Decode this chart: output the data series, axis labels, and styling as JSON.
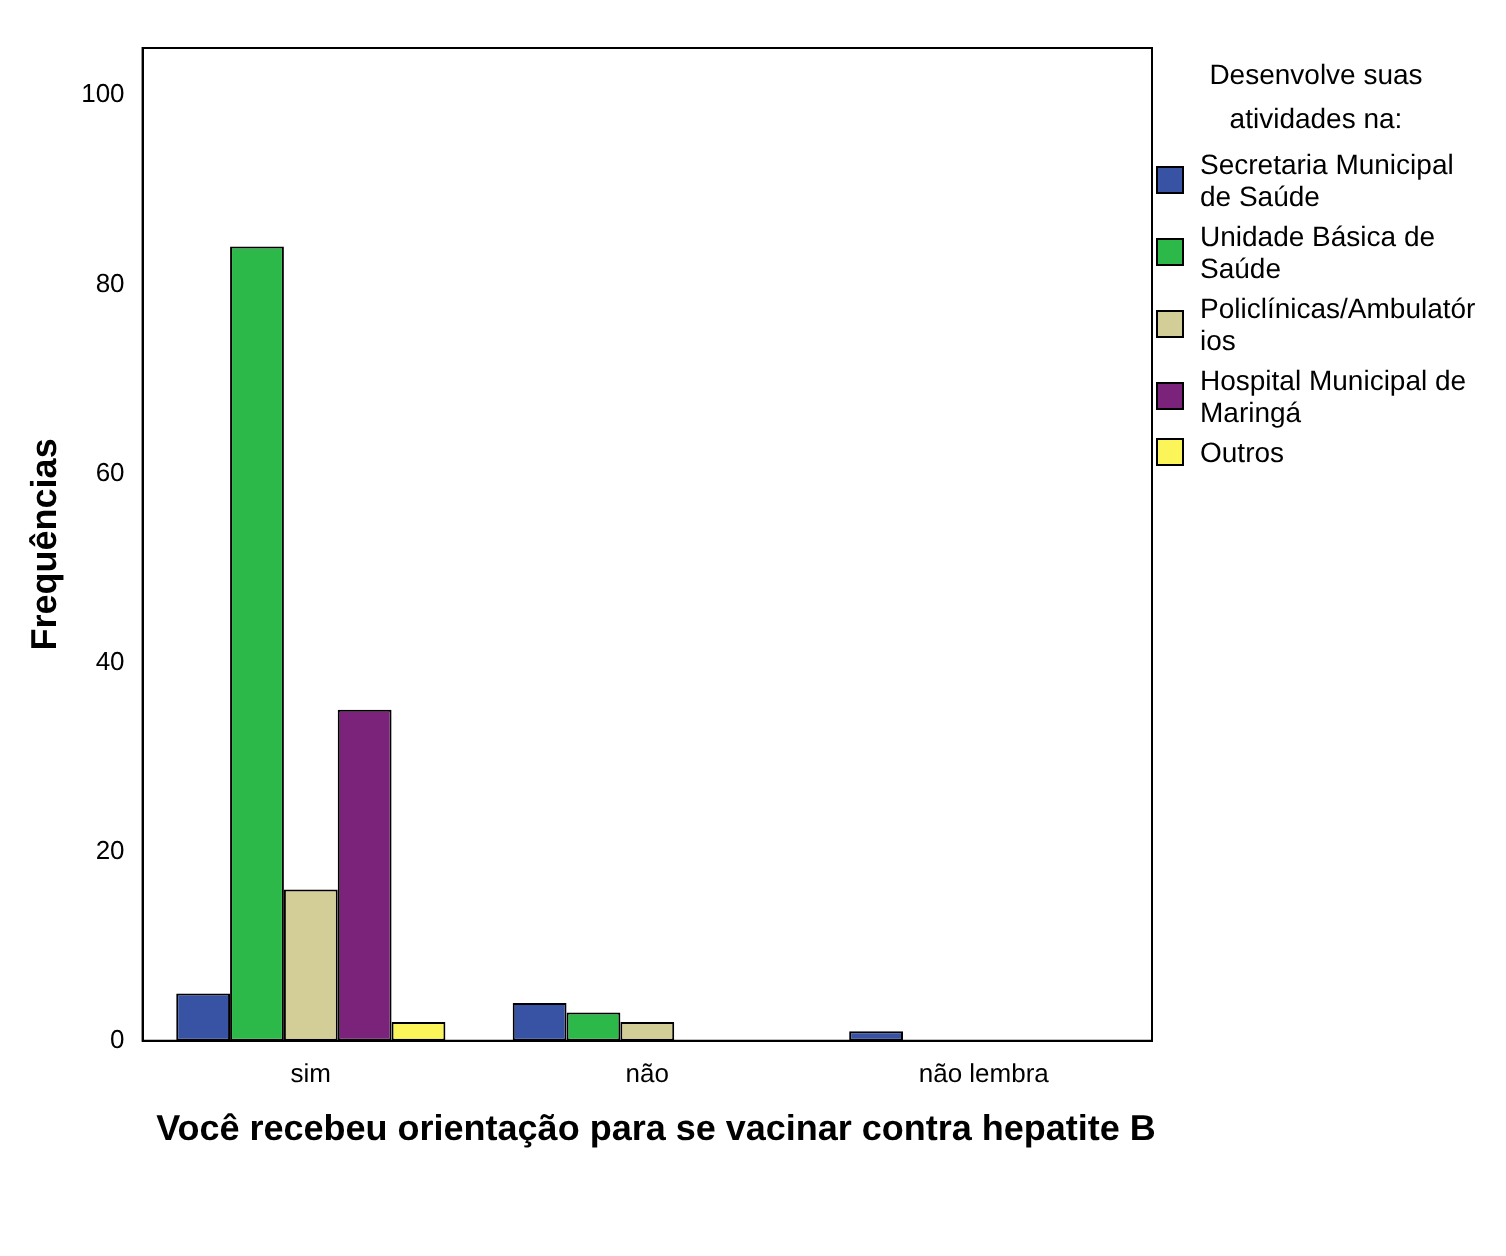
{
  "chart_data": {
    "type": "bar",
    "xlabel": "Você recebeu orientação para se vacinar contra hepatite B",
    "ylabel": "Frequências",
    "legend_title": "Desenvolve suas atividades na:",
    "categories": [
      "sim",
      "não",
      "não lembra"
    ],
    "series": [
      {
        "name": "Secretaria Municipal de Saúde",
        "color": "#3953a4",
        "values": [
          5,
          4,
          1
        ]
      },
      {
        "name": "Unidade Básica de Saúde",
        "color": "#2db84a",
        "values": [
          84,
          3,
          0
        ]
      },
      {
        "name": "Policlínicas/Ambulatórios",
        "color": "#d3ce98",
        "values": [
          16,
          2,
          0
        ]
      },
      {
        "name": "Hospital Municipal de Maringá",
        "color": "#7b237a",
        "values": [
          35,
          0,
          0
        ]
      },
      {
        "name": "Outros",
        "color": "#fbf55a",
        "values": [
          2,
          0,
          0
        ]
      }
    ],
    "ylim": [
      0,
      105
    ],
    "yticks": [
      0,
      20,
      40,
      60,
      80,
      100
    ],
    "grid": false,
    "legend": "right"
  }
}
